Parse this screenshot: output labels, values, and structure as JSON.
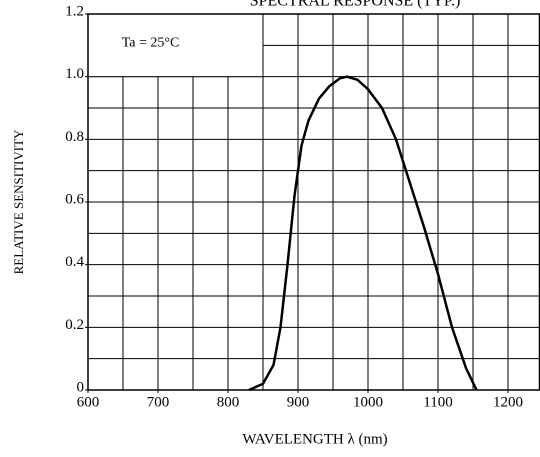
{
  "chart_data": {
    "type": "line",
    "title": "SPECTRAL RESPONSE (TYP.)",
    "annotation": "Ta = 25°C",
    "x_label": "WAVELENGTH λ (nm)",
    "y_label": "RELATIVE SENSITIVITY",
    "x": [
      830,
      850,
      865,
      875,
      885,
      895,
      905,
      915,
      930,
      945,
      960,
      970,
      985,
      1000,
      1020,
      1040,
      1060,
      1080,
      1100,
      1120,
      1140,
      1155
    ],
    "series": [
      {
        "color": "#000000",
        "values": [
          0,
          0.02,
          0.08,
          0.2,
          0.4,
          0.62,
          0.78,
          0.86,
          0.93,
          0.97,
          0.995,
          1.0,
          0.99,
          0.96,
          0.9,
          0.8,
          0.66,
          0.52,
          0.37,
          0.2,
          0.07,
          0
        ]
      }
    ],
    "xlim": [
      600,
      1245
    ],
    "ylim": [
      0,
      1.2
    ],
    "xticks": [
      600,
      700,
      800,
      900,
      1000,
      1100,
      1200
    ],
    "yticks": [
      0,
      0.2,
      0.4,
      0.6,
      0.8,
      {
        "value": 1,
        "label": "1.0"
      },
      1.2
    ],
    "xgrid_step": 50,
    "ygrid_step": 0.1,
    "grid": true
  }
}
